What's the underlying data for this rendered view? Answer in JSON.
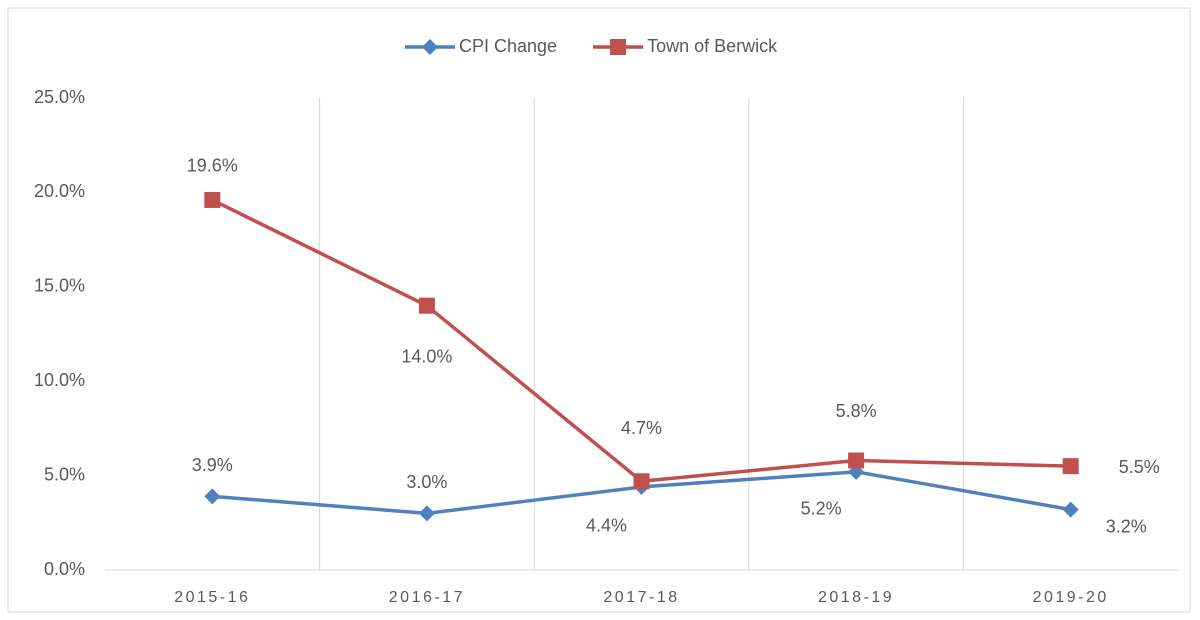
{
  "chart_data": {
    "type": "line",
    "categories": [
      "2015-16",
      "2016-17",
      "2017-18",
      "2018-19",
      "2019-20"
    ],
    "series": [
      {
        "name": "CPI Change",
        "color": "#4f81bd",
        "marker": "diamond",
        "values": [
          3.9,
          3.0,
          4.4,
          5.2,
          3.2
        ],
        "value_labels": [
          "3.9%",
          "3.0%",
          "4.4%",
          "5.2%",
          "3.2%"
        ]
      },
      {
        "name": "Town of Berwick",
        "color": "#c0504d",
        "marker": "square",
        "values": [
          19.6,
          14.0,
          4.7,
          5.8,
          5.5
        ],
        "value_labels": [
          "19.6%",
          "14.0%",
          "4.7%",
          "5.8%",
          "5.5%"
        ]
      }
    ],
    "ylim": [
      0,
      25
    ],
    "yticks": [
      {
        "value": 0,
        "label": "0.0%"
      },
      {
        "value": 5,
        "label": "5.0%"
      },
      {
        "value": 10,
        "label": "10.0%"
      },
      {
        "value": 15,
        "label": "15.0%"
      },
      {
        "value": 20,
        "label": "20.0%"
      },
      {
        "value": 25,
        "label": "25.0%"
      }
    ],
    "grid": true,
    "legend": "top"
  }
}
